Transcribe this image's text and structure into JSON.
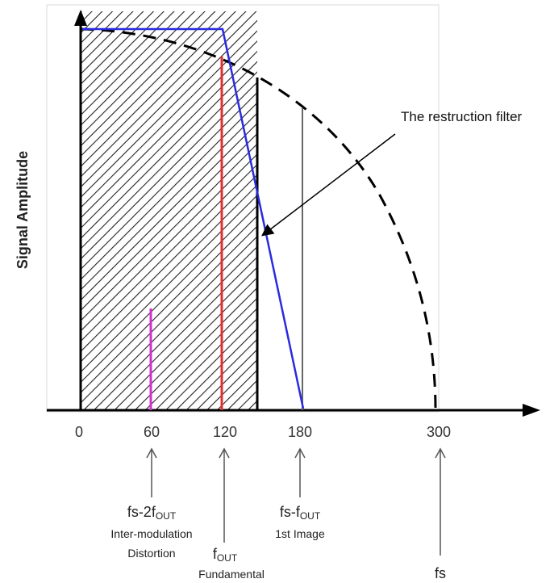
{
  "y_axis_label": "Signal Amplitude",
  "annotation": "The restruction filter",
  "x_ticks": [
    "0",
    "60",
    "120",
    "180",
    "300"
  ],
  "markers": {
    "intermod": {
      "prefix": "fs-2f",
      "sub": "OUT",
      "line2": "Inter-modulation",
      "line3": "Distortion"
    },
    "fundamental": {
      "prefix": "f",
      "sub": "OUT",
      "line2": "Fundamental"
    },
    "image": {
      "prefix": "fs-f",
      "sub": "OUT",
      "line2": "1st Image"
    },
    "fs": {
      "label": "fs"
    }
  },
  "colors": {
    "filter_line": "#2a2ae0",
    "fundamental_line": "#e03030",
    "intermod_line": "#d030d0",
    "image_line": "#666666",
    "axis": "#000000"
  }
}
